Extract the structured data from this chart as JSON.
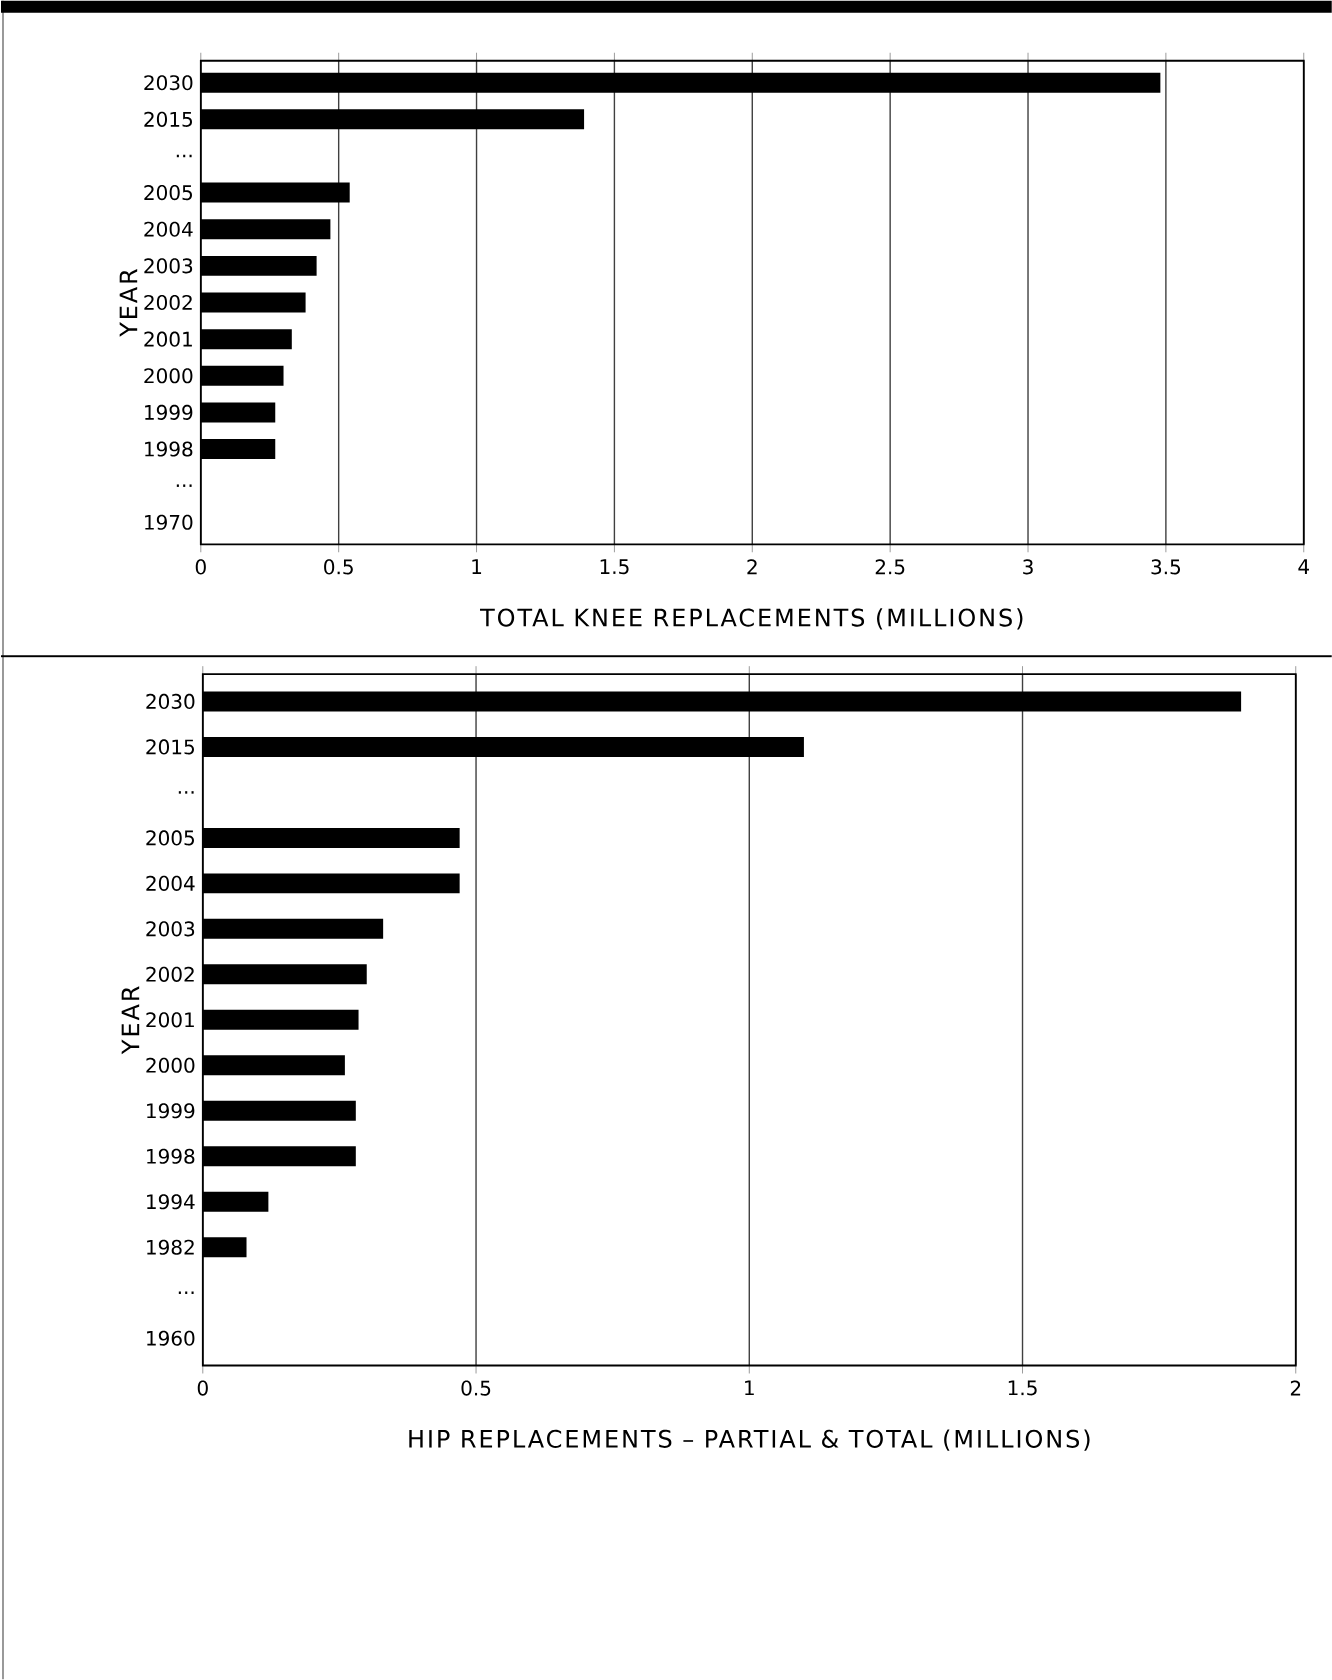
{
  "chart_data": [
    {
      "type": "bar",
      "orientation": "horizontal",
      "xlabel": "TOTAL KNEE REPLACEMENTS (MILLIONS)",
      "ylabel": "YEAR",
      "categories": [
        "2030",
        "2015",
        "...",
        "2005",
        "2004",
        "2003",
        "2002",
        "2001",
        "2000",
        "1999",
        "1998",
        "...",
        "1970"
      ],
      "values": [
        3.48,
        1.39,
        null,
        0.54,
        0.47,
        0.42,
        0.38,
        0.33,
        0.3,
        0.27,
        0.27,
        null,
        null
      ],
      "color": "#000000",
      "xlim": [
        0,
        4
      ],
      "xticks": [
        0,
        0.5,
        1,
        1.5,
        2,
        2.5,
        3,
        3.5,
        4
      ],
      "grid": "x"
    },
    {
      "type": "bar",
      "orientation": "horizontal",
      "xlabel": "HIP REPLACEMENTS – PARTIAL & TOTAL (MILLIONS)",
      "ylabel": "YEAR",
      "categories": [
        "2030",
        "2015",
        "...",
        "2005",
        "2004",
        "2003",
        "2002",
        "2001",
        "2000",
        "1999",
        "1998",
        "1994",
        "1982",
        "...",
        "1960"
      ],
      "values": [
        1.9,
        1.1,
        null,
        0.47,
        0.47,
        0.33,
        0.3,
        0.285,
        0.26,
        0.28,
        0.28,
        0.12,
        0.08,
        null,
        null
      ],
      "color": "#000000",
      "xlim": [
        0,
        2
      ],
      "xticks": [
        0,
        0.5,
        1,
        1.5,
        2
      ],
      "grid": "x"
    }
  ]
}
